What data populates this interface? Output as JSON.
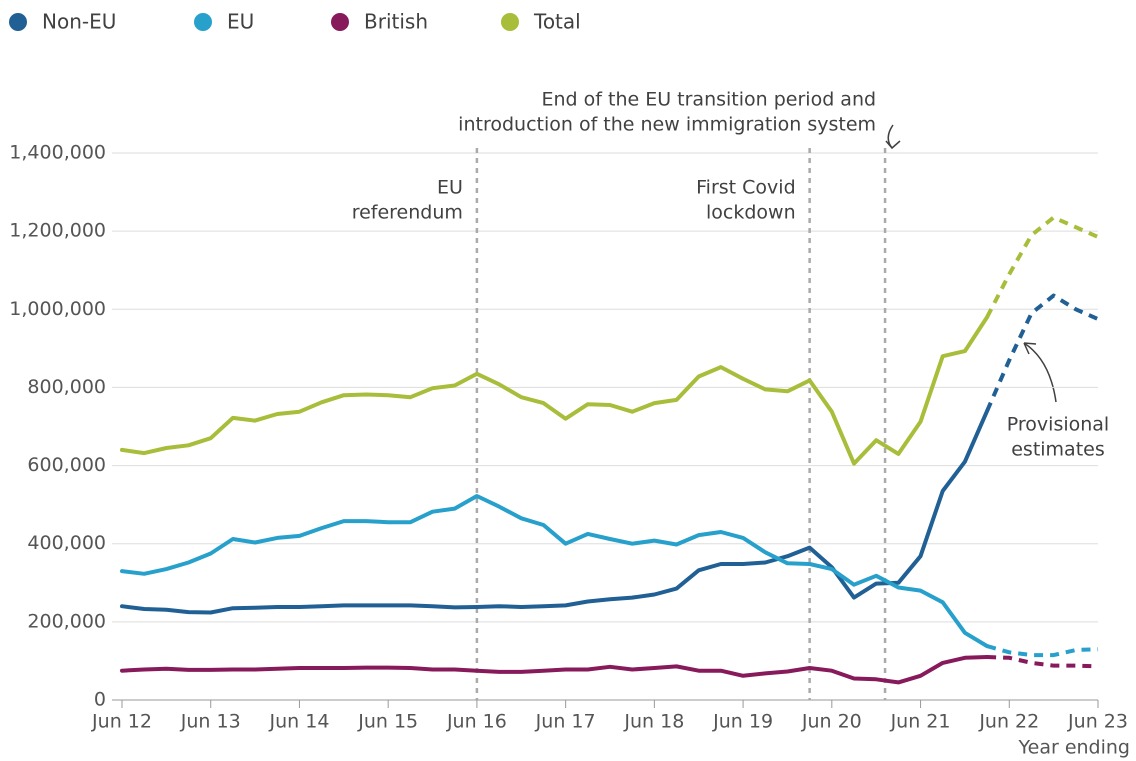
{
  "chart_data": {
    "type": "line",
    "x_label": "Year ending",
    "categories": [
      "Jun 12",
      null,
      null,
      null,
      "Jun 13",
      null,
      null,
      null,
      "Jun 14",
      null,
      null,
      null,
      "Jun 15",
      null,
      null,
      null,
      "Jun 16",
      null,
      null,
      null,
      "Jun 17",
      null,
      null,
      null,
      "Jun 18",
      null,
      null,
      null,
      "Jun 19",
      null,
      null,
      null,
      "Jun 20",
      null,
      null,
      null,
      "Jun 21",
      null,
      null,
      null,
      "Jun 22",
      null,
      null,
      null,
      "Jun 23"
    ],
    "dashed_from_index": 39,
    "series": [
      {
        "name": "Non-EU",
        "color": "#206095",
        "values": [
          240000,
          233000,
          231000,
          225000,
          224000,
          235000,
          236000,
          238000,
          238000,
          240000,
          242000,
          242000,
          242000,
          242000,
          240000,
          237000,
          238000,
          240000,
          238000,
          240000,
          242000,
          252000,
          258000,
          262000,
          270000,
          285000,
          332000,
          348000,
          348000,
          352000,
          368000,
          390000,
          340000,
          262000,
          298000,
          300000,
          368000,
          535000,
          610000,
          740000,
          870000,
          990000,
          1035000,
          1000000,
          975000
        ]
      },
      {
        "name": "EU",
        "color": "#27a0cc",
        "values": [
          330000,
          323000,
          335000,
          352000,
          375000,
          412000,
          403000,
          415000,
          420000,
          440000,
          458000,
          458000,
          455000,
          455000,
          482000,
          490000,
          522000,
          495000,
          465000,
          448000,
          400000,
          425000,
          412000,
          400000,
          408000,
          398000,
          422000,
          430000,
          415000,
          378000,
          350000,
          348000,
          335000,
          295000,
          318000,
          288000,
          280000,
          250000,
          172000,
          138000,
          122000,
          115000,
          115000,
          128000,
          130000
        ]
      },
      {
        "name": "British",
        "color": "#871a5b",
        "values": [
          75000,
          78000,
          80000,
          77000,
          77000,
          78000,
          78000,
          80000,
          82000,
          82000,
          82000,
          83000,
          83000,
          82000,
          78000,
          78000,
          75000,
          72000,
          72000,
          75000,
          78000,
          78000,
          85000,
          78000,
          82000,
          86000,
          75000,
          75000,
          62000,
          68000,
          73000,
          82000,
          75000,
          55000,
          53000,
          45000,
          62000,
          95000,
          108000,
          110000,
          108000,
          95000,
          88000,
          88000,
          86000
        ]
      },
      {
        "name": "Total",
        "color": "#a8bd3a",
        "values": [
          640000,
          632000,
          645000,
          652000,
          670000,
          722000,
          715000,
          732000,
          738000,
          762000,
          780000,
          782000,
          780000,
          775000,
          798000,
          805000,
          835000,
          808000,
          775000,
          760000,
          720000,
          757000,
          755000,
          738000,
          760000,
          768000,
          828000,
          852000,
          822000,
          795000,
          790000,
          818000,
          738000,
          605000,
          665000,
          630000,
          712000,
          880000,
          893000,
          980000,
          1090000,
          1190000,
          1235000,
          1210000,
          1185000
        ]
      }
    ],
    "ylim": [
      0,
      1400000
    ],
    "yticks": [
      0,
      {
        "value": 200000,
        "label": "200,000"
      },
      {
        "value": 400000,
        "label": "400,000"
      },
      {
        "value": 600000,
        "label": "600,000"
      },
      {
        "value": 800000,
        "label": "800,000"
      },
      {
        "value": 1000000,
        "label": "1,000,000"
      },
      {
        "value": 1200000,
        "label": "1,200,000"
      },
      {
        "value": 1400000,
        "label": "1,400,000"
      }
    ],
    "grid": true,
    "annotations": [
      {
        "text": [
          "EU",
          "referendum"
        ],
        "index": 16
      },
      {
        "text": [
          "First Covid",
          "lockdown"
        ],
        "index": 31
      },
      {
        "text": [
          "End of the EU transition period and",
          "introduction of the new immigration system"
        ],
        "index": 34.4
      },
      {
        "text": [
          "Provisional",
          "estimates"
        ]
      }
    ]
  }
}
